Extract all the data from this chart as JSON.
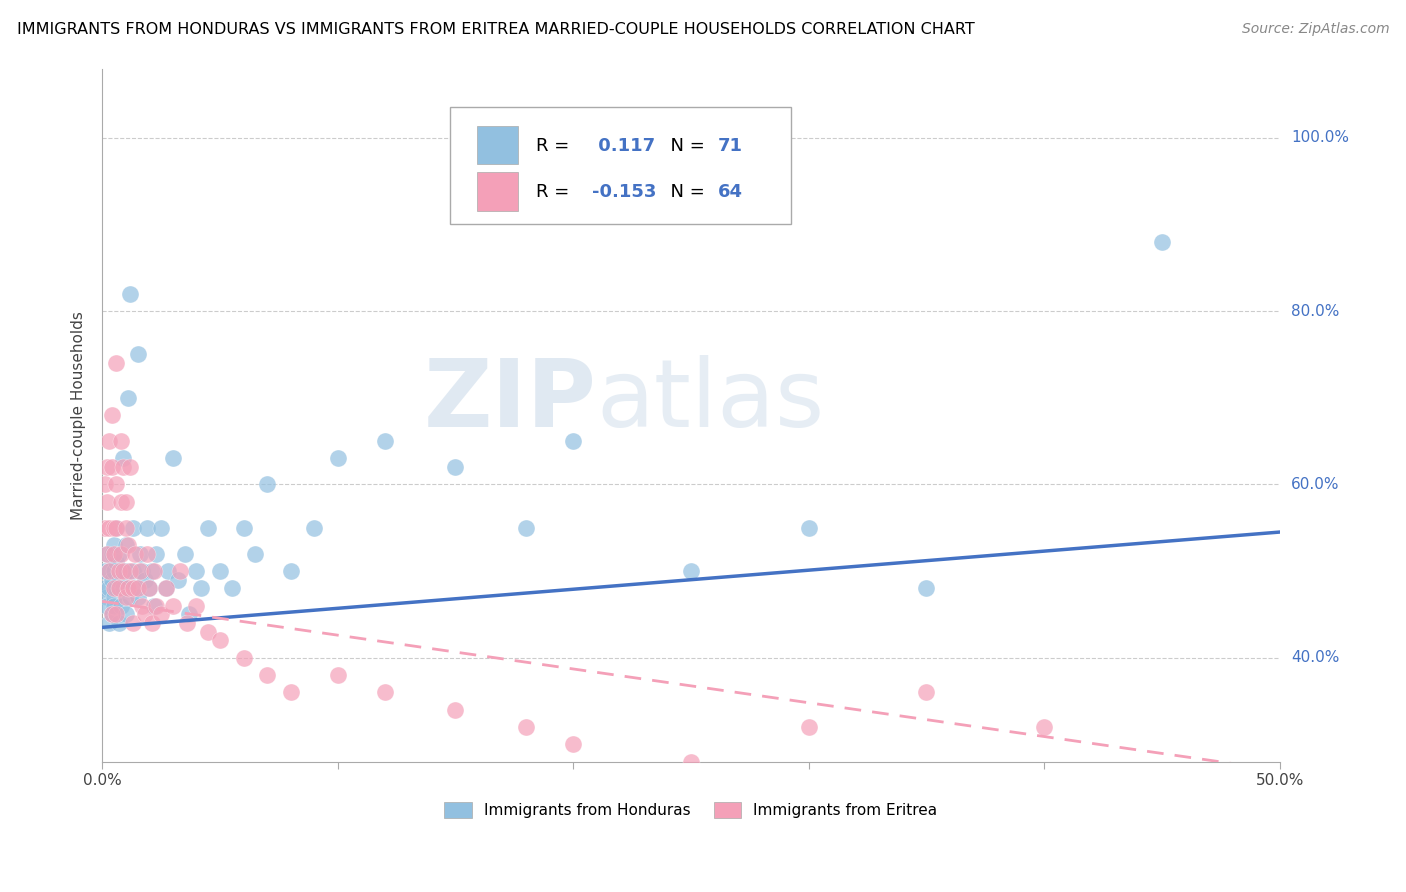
{
  "title": "IMMIGRANTS FROM HONDURAS VS IMMIGRANTS FROM ERITREA MARRIED-COUPLE HOUSEHOLDS CORRELATION CHART",
  "source": "Source: ZipAtlas.com",
  "ylabel": "Married-couple Households",
  "y_ticks": [
    "40.0%",
    "60.0%",
    "80.0%",
    "100.0%"
  ],
  "y_tick_vals": [
    0.4,
    0.6,
    0.8,
    1.0
  ],
  "legend_labels": [
    "Immigrants from Honduras",
    "Immigrants from Eritrea"
  ],
  "watermark": "ZIPatlas",
  "xlim": [
    0.0,
    0.5
  ],
  "ylim": [
    0.28,
    1.08
  ],
  "blue_color": "#92C0E0",
  "pink_color": "#F4A0B8",
  "blue_line_color": "#4472C4",
  "pink_line_color": "#F4A0B8",
  "R_blue": 0.117,
  "N_blue": 71,
  "R_pink": -0.153,
  "N_pink": 64,
  "blue_scatter_x": [
    0.001,
    0.001,
    0.002,
    0.002,
    0.002,
    0.003,
    0.003,
    0.003,
    0.004,
    0.004,
    0.004,
    0.005,
    0.005,
    0.005,
    0.005,
    0.006,
    0.006,
    0.006,
    0.007,
    0.007,
    0.007,
    0.008,
    0.008,
    0.009,
    0.009,
    0.01,
    0.01,
    0.01,
    0.011,
    0.011,
    0.012,
    0.012,
    0.013,
    0.013,
    0.014,
    0.015,
    0.015,
    0.016,
    0.017,
    0.018,
    0.019,
    0.02,
    0.021,
    0.022,
    0.023,
    0.025,
    0.027,
    0.028,
    0.03,
    0.032,
    0.035,
    0.037,
    0.04,
    0.042,
    0.045,
    0.05,
    0.055,
    0.06,
    0.065,
    0.07,
    0.08,
    0.09,
    0.1,
    0.12,
    0.15,
    0.18,
    0.2,
    0.25,
    0.3,
    0.35,
    0.45
  ],
  "blue_scatter_y": [
    0.48,
    0.5,
    0.47,
    0.52,
    0.46,
    0.5,
    0.48,
    0.44,
    0.49,
    0.52,
    0.45,
    0.47,
    0.53,
    0.5,
    0.46,
    0.55,
    0.48,
    0.51,
    0.49,
    0.52,
    0.44,
    0.5,
    0.46,
    0.48,
    0.63,
    0.5,
    0.53,
    0.45,
    0.48,
    0.7,
    0.47,
    0.82,
    0.5,
    0.55,
    0.48,
    0.47,
    0.75,
    0.52,
    0.5,
    0.49,
    0.55,
    0.48,
    0.5,
    0.46,
    0.52,
    0.55,
    0.48,
    0.5,
    0.63,
    0.49,
    0.52,
    0.45,
    0.5,
    0.48,
    0.55,
    0.5,
    0.48,
    0.55,
    0.52,
    0.6,
    0.5,
    0.55,
    0.63,
    0.65,
    0.62,
    0.55,
    0.65,
    0.5,
    0.55,
    0.48,
    0.88
  ],
  "pink_scatter_x": [
    0.001,
    0.001,
    0.002,
    0.002,
    0.002,
    0.003,
    0.003,
    0.003,
    0.004,
    0.004,
    0.004,
    0.005,
    0.005,
    0.005,
    0.006,
    0.006,
    0.006,
    0.007,
    0.007,
    0.008,
    0.008,
    0.009,
    0.009,
    0.01,
    0.01,
    0.011,
    0.011,
    0.012,
    0.013,
    0.013,
    0.014,
    0.015,
    0.016,
    0.017,
    0.018,
    0.019,
    0.02,
    0.021,
    0.022,
    0.023,
    0.025,
    0.027,
    0.03,
    0.033,
    0.036,
    0.04,
    0.045,
    0.05,
    0.06,
    0.07,
    0.08,
    0.1,
    0.12,
    0.15,
    0.18,
    0.2,
    0.25,
    0.3,
    0.35,
    0.4,
    0.006,
    0.008,
    0.01,
    0.012
  ],
  "pink_scatter_y": [
    0.6,
    0.55,
    0.62,
    0.58,
    0.52,
    0.65,
    0.5,
    0.55,
    0.68,
    0.45,
    0.62,
    0.55,
    0.48,
    0.52,
    0.6,
    0.45,
    0.55,
    0.5,
    0.48,
    0.58,
    0.52,
    0.62,
    0.5,
    0.55,
    0.47,
    0.53,
    0.48,
    0.5,
    0.48,
    0.44,
    0.52,
    0.48,
    0.5,
    0.46,
    0.45,
    0.52,
    0.48,
    0.44,
    0.5,
    0.46,
    0.45,
    0.48,
    0.46,
    0.5,
    0.44,
    0.46,
    0.43,
    0.42,
    0.4,
    0.38,
    0.36,
    0.38,
    0.36,
    0.34,
    0.32,
    0.3,
    0.28,
    0.32,
    0.36,
    0.32,
    0.74,
    0.65,
    0.58,
    0.62
  ],
  "blue_line_y0": 0.435,
  "blue_line_y1": 0.545,
  "pink_line_y0": 0.465,
  "pink_line_y1": 0.27
}
